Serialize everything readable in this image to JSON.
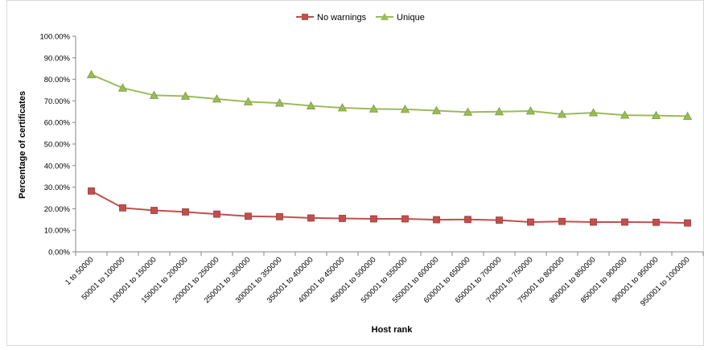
{
  "chart_data": {
    "type": "line",
    "title": "",
    "xlabel": "Host rank",
    "ylabel": "Percentage of certificates",
    "ylim": [
      0,
      100
    ],
    "y_ticks": [
      "0.00%",
      "10.00%",
      "20.00%",
      "30.00%",
      "40.00%",
      "50.00%",
      "60.00%",
      "70.00%",
      "80.00%",
      "90.00%",
      "100.00%"
    ],
    "grid": false,
    "legend_position": "top-center",
    "categories": [
      "1 to 50000",
      "50001 to 100000",
      "100001 to 150000",
      "150001 to 200000",
      "200001 to 250000",
      "250001 to 300000",
      "300001 to 350000",
      "350001 to 400000",
      "400001 to 450000",
      "450001 to 500000",
      "500001 to 550000",
      "550001 to 600000",
      "600001 to 650000",
      "650001 to 700000",
      "700001 to 750000",
      "750001 to 800000",
      "800001 to 850000",
      "850001 to 900000",
      "900001 to 950000",
      "950001 to 1000000"
    ],
    "series": [
      {
        "name": "No warnings",
        "color": "#C0504D",
        "marker": "square",
        "values": [
          28.2,
          20.4,
          19.2,
          18.5,
          17.5,
          16.5,
          16.3,
          15.7,
          15.5,
          15.3,
          15.3,
          14.9,
          15.0,
          14.7,
          13.8,
          14.1,
          13.8,
          13.8,
          13.7,
          13.4
        ]
      },
      {
        "name": "Unique",
        "color": "#9BBB59",
        "marker": "triangle",
        "values": [
          82.2,
          76.0,
          72.6,
          72.2,
          70.9,
          69.6,
          69.0,
          67.7,
          66.8,
          66.3,
          66.1,
          65.5,
          64.8,
          65.0,
          65.3,
          63.8,
          64.5,
          63.4,
          63.2,
          62.9
        ]
      }
    ]
  }
}
